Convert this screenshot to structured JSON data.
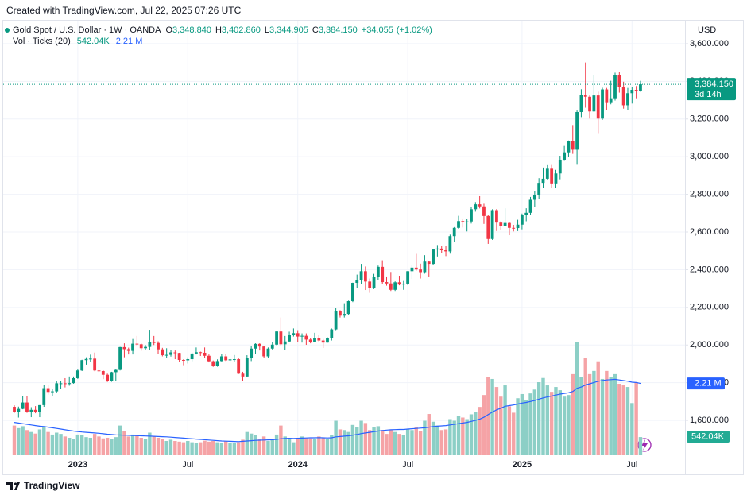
{
  "header": {
    "created": "Created with TradingView.com, Jul 22, 2025 07:26 UTC",
    "logo": "TradingView"
  },
  "chart_data": {
    "type": "candlestick",
    "title": "Gold Spot / U.S. Dollar · 1W · OANDA",
    "currency": "USD",
    "categories": [
      null,
      null,
      null,
      null,
      null,
      null,
      null,
      null,
      null,
      null,
      null,
      null,
      null,
      null,
      null,
      "2023",
      null,
      null,
      null,
      null,
      null,
      null,
      null,
      null,
      null,
      null,
      null,
      null,
      null,
      null,
      null,
      null,
      null,
      null,
      null,
      null,
      null,
      null,
      null,
      null,
      null,
      "Jul",
      null,
      null,
      null,
      null,
      null,
      null,
      null,
      null,
      null,
      null,
      null,
      null,
      null,
      null,
      null,
      null,
      null,
      null,
      null,
      null,
      null,
      null,
      null,
      null,
      null,
      "2024",
      null,
      null,
      null,
      null,
      null,
      null,
      null,
      null,
      null,
      null,
      null,
      null,
      null,
      null,
      null,
      null,
      null,
      null,
      null,
      null,
      null,
      null,
      null,
      null,
      null,
      "Jul",
      null,
      null,
      null,
      null,
      null,
      null,
      null,
      null,
      null,
      null,
      null,
      null,
      null,
      null,
      null,
      null,
      null,
      null,
      null,
      null,
      null,
      null,
      null,
      null,
      null,
      null,
      "2025",
      null,
      null,
      null,
      null,
      null,
      null,
      null,
      null,
      null,
      null,
      null,
      null,
      null,
      null,
      null,
      null,
      null,
      null,
      null,
      null,
      null,
      null,
      null,
      null,
      null,
      "Jul",
      null,
      null
    ],
    "open": [
      1672,
      1644,
      1661,
      1695,
      1644,
      1656,
      1644,
      1681,
      1771,
      1751,
      1754,
      1797,
      1797,
      1793,
      1798,
      1824,
      1865,
      1920,
      1926,
      1928,
      1865,
      1862,
      1842,
      1811,
      1856,
      1868,
      1989,
      1978,
      1969,
      2007,
      2004,
      1983,
      1990,
      2017,
      2011,
      1977,
      1946,
      1948,
      1961,
      1958,
      1921,
      1919,
      1925,
      1955,
      1962,
      1959,
      1943,
      1914,
      1889,
      1915,
      1940,
      1919,
      1924,
      1925,
      1848,
      1833,
      1933,
      1981,
      2006,
      1992,
      1940,
      1981,
      2002,
      2072,
      2004,
      2019,
      2053,
      2063,
      2045,
      2049,
      2029,
      2018,
      2039,
      2024,
      2013,
      2035,
      2083,
      2179,
      2156,
      2165,
      2233,
      2330,
      2344,
      2392,
      2337,
      2301,
      2360,
      2415,
      2334,
      2327,
      2293,
      2333,
      2321,
      2326,
      2392,
      2411,
      2401,
      2387,
      2443,
      2431,
      2507,
      2512,
      2503,
      2497,
      2578,
      2622,
      2658,
      2653,
      2656,
      2721,
      2747,
      2736,
      2685,
      2563,
      2716,
      2650,
      2633,
      2648,
      2622,
      2621,
      2639,
      2690,
      2702,
      2771,
      2798,
      2861,
      2883,
      2936,
      2858,
      2911,
      2984,
      3023,
      3084,
      3037,
      3237,
      3327,
      3318,
      3240,
      3325,
      3202,
      3357,
      3289,
      3310,
      3433,
      3368,
      3273,
      3337,
      3355,
      3348.84
    ],
    "high": [
      1680,
      1673,
      1729,
      1730,
      1670,
      1676,
      1681,
      1786,
      1787,
      1765,
      1809,
      1810,
      1824,
      1833,
      1833,
      1870,
      1922,
      1935,
      1949,
      1960,
      1890,
      1866,
      1848,
      1858,
      1870,
      1990,
      2009,
      1986,
      2032,
      2048,
      2008,
      2000,
      2081,
      2048,
      2020,
      1985,
      1983,
      1972,
      1971,
      1959,
      1925,
      1935,
      1960,
      1987,
      1965,
      1987,
      1950,
      1918,
      1924,
      1953,
      1953,
      1932,
      1947,
      1930,
      1858,
      1946,
      1997,
      2009,
      2009,
      1993,
      1987,
      2018,
      2075,
      2146,
      2048,
      2071,
      2088,
      2079,
      2062,
      2062,
      2036,
      2065,
      2052,
      2032,
      2041,
      2088,
      2195,
      2185,
      2222,
      2236,
      2331,
      2374,
      2431,
      2417,
      2353,
      2378,
      2422,
      2450,
      2364,
      2388,
      2338,
      2368,
      2340,
      2393,
      2424,
      2484,
      2432,
      2477,
      2447,
      2510,
      2531,
      2525,
      2528,
      2586,
      2626,
      2686,
      2672,
      2671,
      2732,
      2759,
      2790,
      2750,
      2692,
      2721,
      2722,
      2657,
      2726,
      2654,
      2638,
      2665,
      2698,
      2726,
      2786,
      2817,
      2886,
      2942,
      2955,
      2956,
      2930,
      3005,
      3057,
      3086,
      3168,
      3245,
      3358,
      3500,
      3325,
      3435,
      3345,
      3366,
      3365,
      3403,
      3446,
      3452,
      3398,
      3365,
      3368,
      3375,
      3402.86
    ],
    "low": [
      1640,
      1615,
      1659,
      1640,
      1617,
      1638,
      1617,
      1672,
      1737,
      1727,
      1745,
      1765,
      1775,
      1784,
      1795,
      1820,
      1862,
      1896,
      1911,
      1861,
      1852,
      1819,
      1804,
      1805,
      1810,
      1865,
      1935,
      1950,
      1950,
      1992,
      1970,
      1975,
      1975,
      2000,
      1952,
      1940,
      1932,
      1939,
      1925,
      1910,
      1893,
      1902,
      1914,
      1950,
      1942,
      1932,
      1908,
      1884,
      1885,
      1913,
      1915,
      1906,
      1913,
      1846,
      1810,
      1830,
      1915,
      1953,
      1971,
      1931,
      1932,
      1976,
      1999,
      1995,
      1973,
      2016,
      2045,
      2016,
      2013,
      2001,
      2009,
      2016,
      2014,
      1984,
      2012,
      2024,
      2079,
      2146,
      2146,
      2160,
      2228,
      2303,
      2324,
      2292,
      2277,
      2297,
      2344,
      2325,
      2315,
      2287,
      2287,
      2317,
      2293,
      2318,
      2351,
      2395,
      2353,
      2379,
      2364,
      2426,
      2470,
      2490,
      2472,
      2485,
      2546,
      2617,
      2624,
      2603,
      2645,
      2708,
      2725,
      2643,
      2537,
      2558,
      2605,
      2613,
      2631,
      2583,
      2603,
      2605,
      2614,
      2657,
      2691,
      2731,
      2773,
      2832,
      2879,
      2833,
      2832,
      2880,
      2982,
      3000,
      3015,
      2957,
      3210,
      3260,
      3202,
      3238,
      3121,
      3195,
      3246,
      3278,
      3298,
      3340,
      3255,
      3247,
      3282,
      3310,
      3344.905
    ],
    "close": [
      1644,
      1661,
      1695,
      1644,
      1656,
      1644,
      1681,
      1771,
      1751,
      1754,
      1797,
      1797,
      1793,
      1798,
      1824,
      1865,
      1920,
      1926,
      1928,
      1865,
      1862,
      1842,
      1811,
      1856,
      1868,
      1989,
      1978,
      1969,
      2007,
      2004,
      1983,
      1990,
      2017,
      2011,
      1977,
      1946,
      1948,
      1961,
      1958,
      1921,
      1919,
      1925,
      1955,
      1962,
      1959,
      1943,
      1914,
      1889,
      1915,
      1940,
      1919,
      1924,
      1925,
      1848,
      1833,
      1933,
      1981,
      2006,
      1992,
      1940,
      1981,
      2002,
      2072,
      2004,
      2019,
      2053,
      2063,
      2045,
      2049,
      2029,
      2018,
      2039,
      2024,
      2013,
      2035,
      2083,
      2179,
      2156,
      2165,
      2233,
      2330,
      2344,
      2392,
      2337,
      2301,
      2360,
      2415,
      2334,
      2327,
      2293,
      2333,
      2321,
      2326,
      2392,
      2411,
      2401,
      2387,
      2443,
      2431,
      2507,
      2512,
      2503,
      2497,
      2578,
      2622,
      2658,
      2653,
      2656,
      2721,
      2747,
      2736,
      2685,
      2563,
      2716,
      2650,
      2633,
      2648,
      2622,
      2621,
      2639,
      2690,
      2702,
      2771,
      2798,
      2861,
      2883,
      2936,
      2858,
      2911,
      2984,
      3023,
      3084,
      3037,
      3237,
      3327,
      3318,
      3240,
      3325,
      3202,
      3357,
      3289,
      3310,
      3433,
      3368,
      3273,
      3337,
      3355,
      3350.095,
      3384.15
    ],
    "legend_values": [
      {
        "prefix": "O",
        "value": 3348.84,
        "label": "3,348.840"
      },
      {
        "prefix": "H",
        "value": 3402.86,
        "label": "3,402.860"
      },
      {
        "prefix": "L",
        "value": 3344.905,
        "label": "3,344.905"
      },
      {
        "prefix": "C",
        "value": 3384.15,
        "label": "3,384.150"
      }
    ],
    "change": {
      "value": 34.055,
      "label": "+34.055"
    },
    "change_pct": {
      "value": 1.02,
      "label": "(+1.02%)"
    },
    "last_price": {
      "value": 3384.15,
      "label": "3,384.150"
    },
    "countdown": "3d 14h",
    "ylim": [
      1419,
      3722
    ],
    "yticks": [
      {
        "value": 1600,
        "label": "1,600.000"
      },
      {
        "value": 1800,
        "label": "1,800.000"
      },
      {
        "value": 2000,
        "label": "2,000.000"
      },
      {
        "value": 2200,
        "label": "2,200.000"
      },
      {
        "value": 2400,
        "label": "2,400.000"
      },
      {
        "value": 2600,
        "label": "2,600.000"
      },
      {
        "value": 2800,
        "label": "2,800.000"
      },
      {
        "value": 3000,
        "label": "3,000.000"
      },
      {
        "value": 3200,
        "label": "3,200.000"
      },
      {
        "value": 3400,
        "label": "3,400.000"
      },
      {
        "value": 3600,
        "label": "3,600.000"
      }
    ],
    "grid": true,
    "up_color": "#089981",
    "down_color": "#f23645",
    "y2lim": [
      0,
      13500000
    ],
    "volume": {
      "name": "Vol · Ticks (20)",
      "axis": "y2",
      "up_color": "#8ccfc6",
      "down_color": "#f5a3a6",
      "tag_color": "#22ab94",
      "ma_color": "#2962ff",
      "values": [
        900000,
        820000,
        880000,
        760000,
        700000,
        650000,
        780000,
        850000,
        700000,
        620000,
        680000,
        640000,
        560000,
        520000,
        480000,
        620000,
        600000,
        540000,
        520000,
        640000,
        560000,
        500000,
        520000,
        470000,
        540000,
        900000,
        720000,
        560000,
        620000,
        600000,
        520000,
        470000,
        680000,
        560000,
        520000,
        470000,
        420000,
        460000,
        420000,
        400000,
        380000,
        420000,
        380000,
        360000,
        380000,
        430000,
        400000,
        420000,
        380000,
        360000,
        420000,
        350000,
        360000,
        380000,
        460000,
        700000,
        650000,
        600000,
        480000,
        560000,
        420000,
        460000,
        620000,
        900000,
        560000,
        480000,
        380000,
        520000,
        560000,
        520000,
        500000,
        480000,
        560000,
        520000,
        480000,
        600000,
        1050000,
        780000,
        760000,
        700000,
        920000,
        860000,
        1050000,
        980000,
        760000,
        840000,
        880000,
        760000,
        640000,
        760000,
        700000,
        640000,
        600000,
        780000,
        760000,
        860000,
        740000,
        1050000,
        1260000,
        1020000,
        900000,
        760000,
        780000,
        1100000,
        1050000,
        1200000,
        1150000,
        1100000,
        1250000,
        1320000,
        1480000,
        1850000,
        2400000,
        2350000,
        2100000,
        1800000,
        2150000,
        1500000,
        1300000,
        1750000,
        1880000,
        1700000,
        1900000,
        2020000,
        2250000,
        2380000,
        2150000,
        1950000,
        2100000,
        2000000,
        1800000,
        1850000,
        2500000,
        3500000,
        2400000,
        3000000,
        2500000,
        2600000,
        2900000,
        2350000,
        2600000,
        2400000,
        2500000,
        2200000,
        2150000,
        2100000,
        1600000,
        2250000,
        542040
      ],
      "ma": [
        1000000,
        980000,
        960000,
        940000,
        920000,
        900000,
        880000,
        870000,
        850000,
        830000,
        810000,
        790000,
        770000,
        750000,
        730000,
        715000,
        700000,
        690000,
        680000,
        670000,
        660000,
        645000,
        630000,
        620000,
        610000,
        605000,
        600000,
        595000,
        590000,
        585000,
        580000,
        575000,
        570000,
        565000,
        560000,
        555000,
        550000,
        540000,
        530000,
        520000,
        510000,
        500000,
        490000,
        480000,
        470000,
        460000,
        450000,
        440000,
        430000,
        420000,
        415000,
        410000,
        405000,
        400000,
        410000,
        420000,
        430000,
        440000,
        445000,
        450000,
        455000,
        460000,
        470000,
        490000,
        500000,
        505000,
        500000,
        505000,
        510000,
        515000,
        520000,
        520000,
        525000,
        520000,
        515000,
        520000,
        550000,
        560000,
        570000,
        580000,
        600000,
        620000,
        650000,
        670000,
        690000,
        710000,
        730000,
        745000,
        760000,
        770000,
        775000,
        780000,
        780000,
        790000,
        800000,
        810000,
        820000,
        830000,
        850000,
        870000,
        880000,
        890000,
        900000,
        920000,
        940000,
        960000,
        980000,
        1000000,
        1030000,
        1060000,
        1100000,
        1160000,
        1240000,
        1320000,
        1390000,
        1440000,
        1500000,
        1520000,
        1540000,
        1570000,
        1600000,
        1620000,
        1650000,
        1680000,
        1720000,
        1760000,
        1790000,
        1820000,
        1850000,
        1880000,
        1900000,
        1920000,
        1960000,
        2060000,
        2100000,
        2160000,
        2200000,
        2240000,
        2280000,
        2300000,
        2320000,
        2330000,
        2340000,
        2320000,
        2300000,
        2280000,
        2250000,
        2240000,
        2210000
      ],
      "last_value_label": "542.04K",
      "ma_last_label": "2.21 M"
    }
  }
}
